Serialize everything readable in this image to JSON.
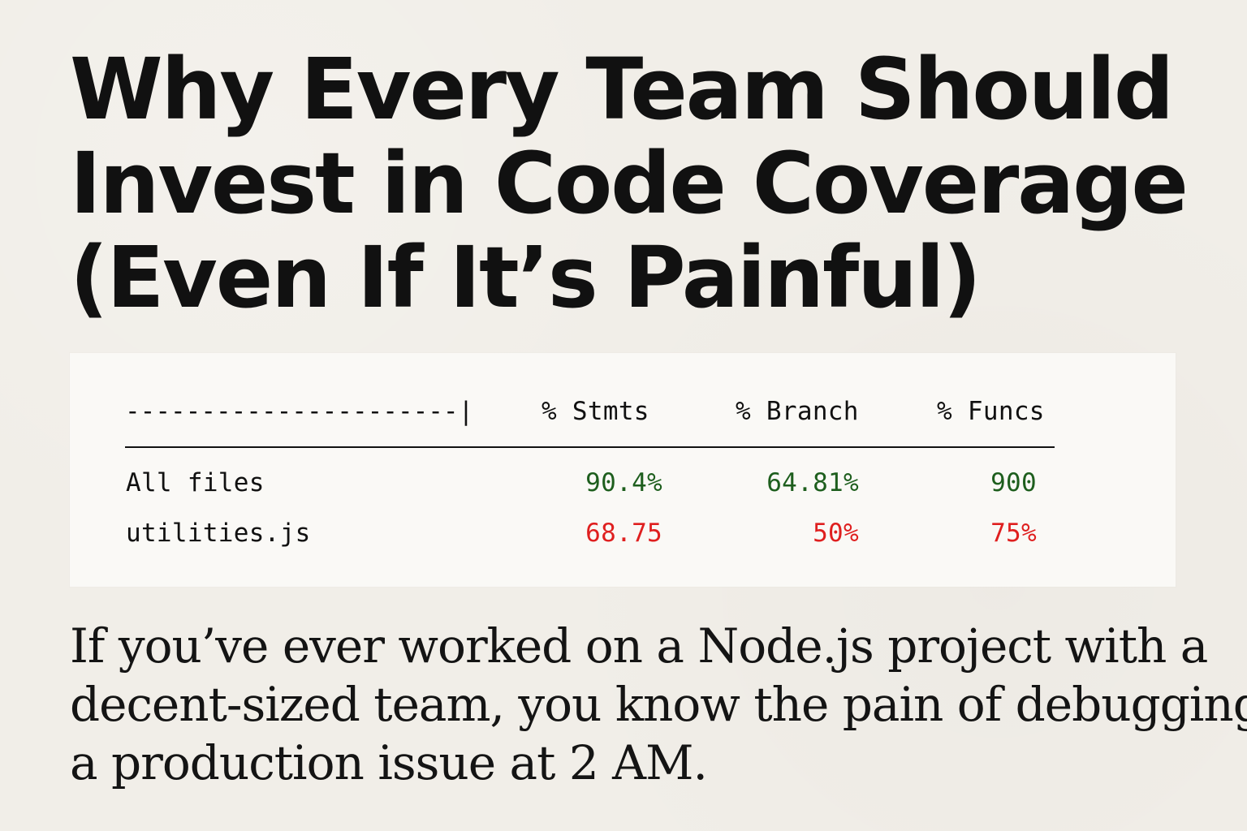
{
  "article": {
    "title_lines": [
      "Why Every Team Should",
      "Invest in Code Coverage",
      "(Even If It’s Painful)"
    ],
    "body_lines": [
      "If you’ve ever worked on a Node.js project with a",
      "decent-sized team, you know the pain of debugging",
      "a production issue at 2 AM."
    ]
  },
  "coverage": {
    "header": {
      "separator": "----------------------|",
      "columns": [
        "% Stmts",
        "% Branch",
        "% Funcs"
      ]
    },
    "rows": [
      {
        "label": "All files",
        "values": [
          "90.4%",
          "64.81%",
          "900"
        ],
        "status_color": "#1d5e1d"
      },
      {
        "label": "utilities.js",
        "values": [
          "68.75",
          "50%",
          "75%"
        ],
        "status_color": "#df1f1f"
      }
    ]
  }
}
